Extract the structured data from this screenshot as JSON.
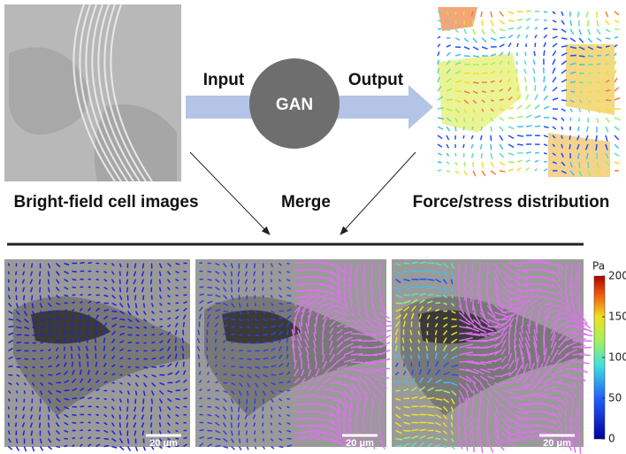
{
  "top": {
    "input_label": "Input",
    "model": "GAN",
    "output_label": "Output"
  },
  "captions": [
    "Bright-field cell images",
    "Merge",
    "Force/stress distribution"
  ],
  "panels": [
    {
      "scale_bar": "20 μm"
    },
    {
      "scale_bar": "20 μm"
    },
    {
      "scale_bar": "20 μm"
    }
  ],
  "colorbar": {
    "label": "Pa",
    "lim": [
      0,
      200
    ],
    "ticks": [
      0,
      50,
      100,
      150,
      200
    ]
  }
}
